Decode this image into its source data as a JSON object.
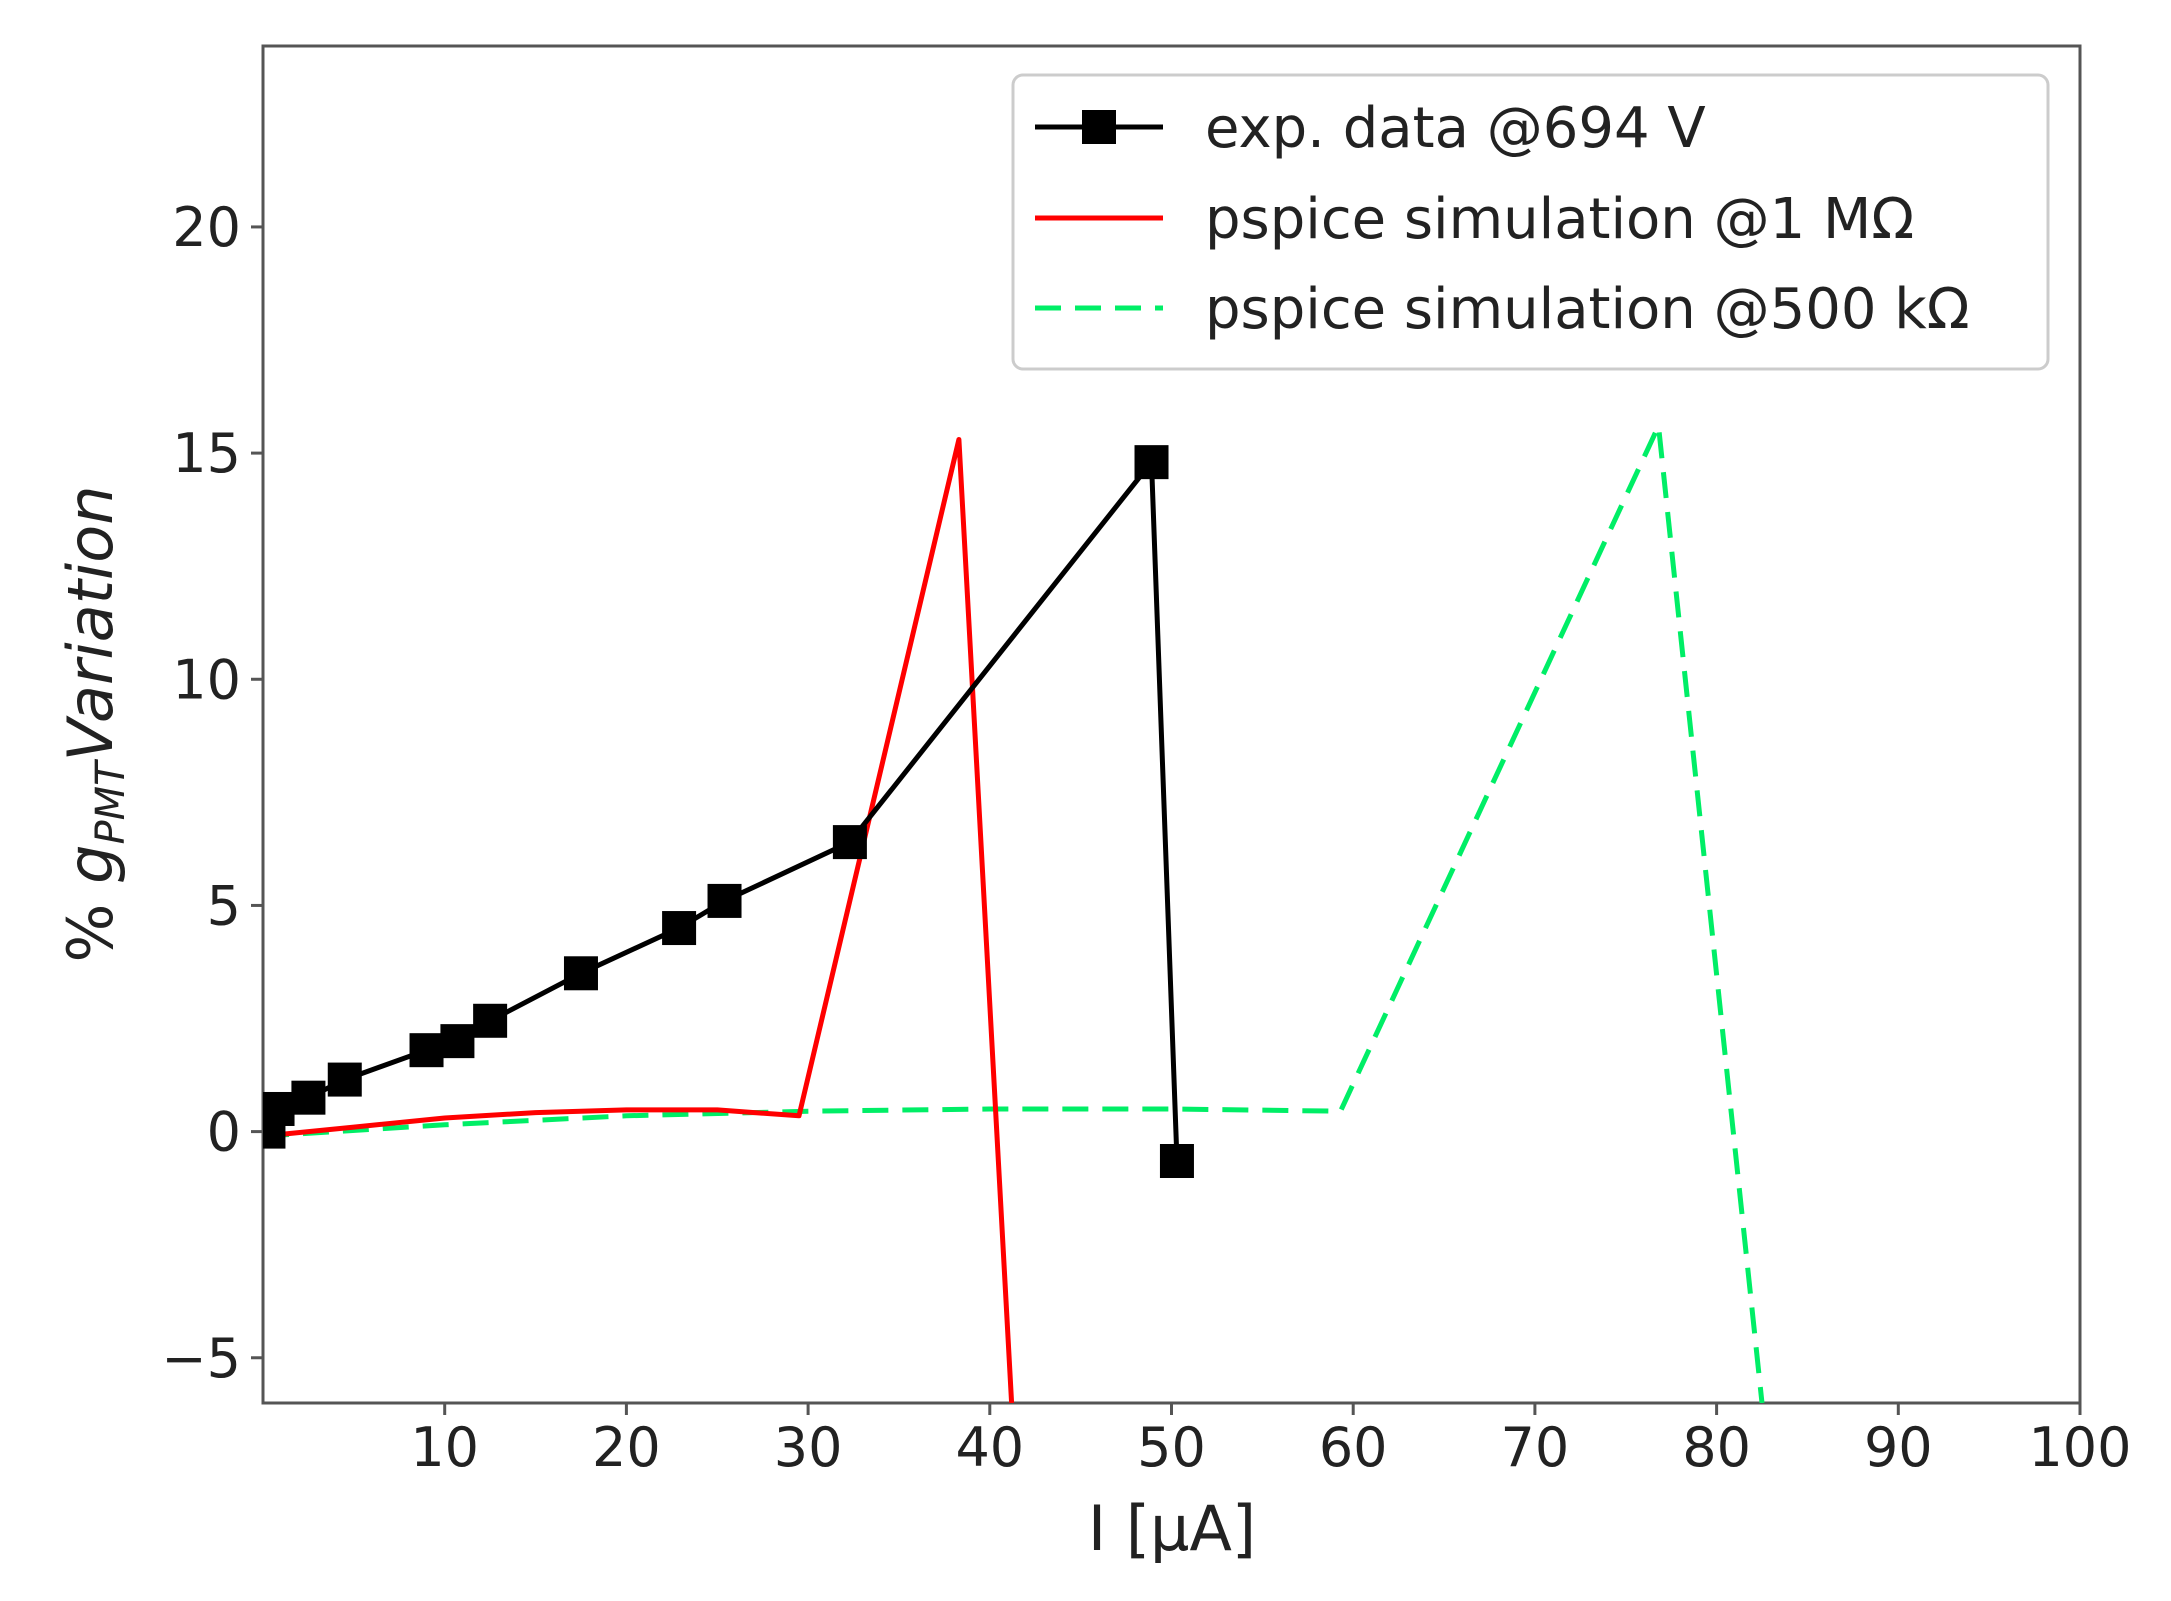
{
  "chart_data": {
    "type": "line",
    "xlabel": "I [μA]",
    "ylabel": {
      "prefix": "% ",
      "symbol": "g",
      "subscript": "PMT",
      "suffix": "Variation"
    },
    "xlim": [
      0,
      100
    ],
    "ylim": [
      -6,
      24
    ],
    "xticks": [
      10,
      20,
      30,
      40,
      50,
      60,
      70,
      80,
      90,
      100
    ],
    "yticks": [
      -5,
      0,
      5,
      10,
      15,
      20
    ],
    "grid": false,
    "legend_position": "top-right",
    "series": [
      {
        "name": "exp. data @694 V",
        "color": "#000000",
        "style": "solid",
        "marker": "square",
        "x": [
          0.3,
          0.8,
          2.5,
          4.5,
          9.0,
          10.7,
          12.5,
          17.5,
          22.9,
          25.4,
          32.3,
          48.9,
          50.3
        ],
        "y": [
          0.0,
          0.5,
          0.75,
          1.15,
          1.8,
          2.0,
          2.45,
          3.5,
          4.5,
          5.1,
          6.4,
          14.8,
          -0.65
        ]
      },
      {
        "name": "pspice simulation @1 MΩ",
        "color": "#ff0000",
        "style": "solid",
        "marker": "none",
        "x": [
          0,
          5,
          10,
          15,
          20,
          25,
          29.5,
          38.3,
          41.2
        ],
        "y": [
          -0.1,
          0.1,
          0.3,
          0.42,
          0.48,
          0.48,
          0.35,
          15.3,
          -6.0
        ]
      },
      {
        "name": "pspice simulation @500 kΩ",
        "color": "#00ee66",
        "style": "dashed",
        "marker": "none",
        "x": [
          0,
          10,
          20,
          30,
          40,
          50,
          59.3,
          76.8,
          82.5
        ],
        "y": [
          -0.1,
          0.15,
          0.35,
          0.45,
          0.5,
          0.5,
          0.45,
          15.6,
          -6.0
        ]
      }
    ]
  }
}
